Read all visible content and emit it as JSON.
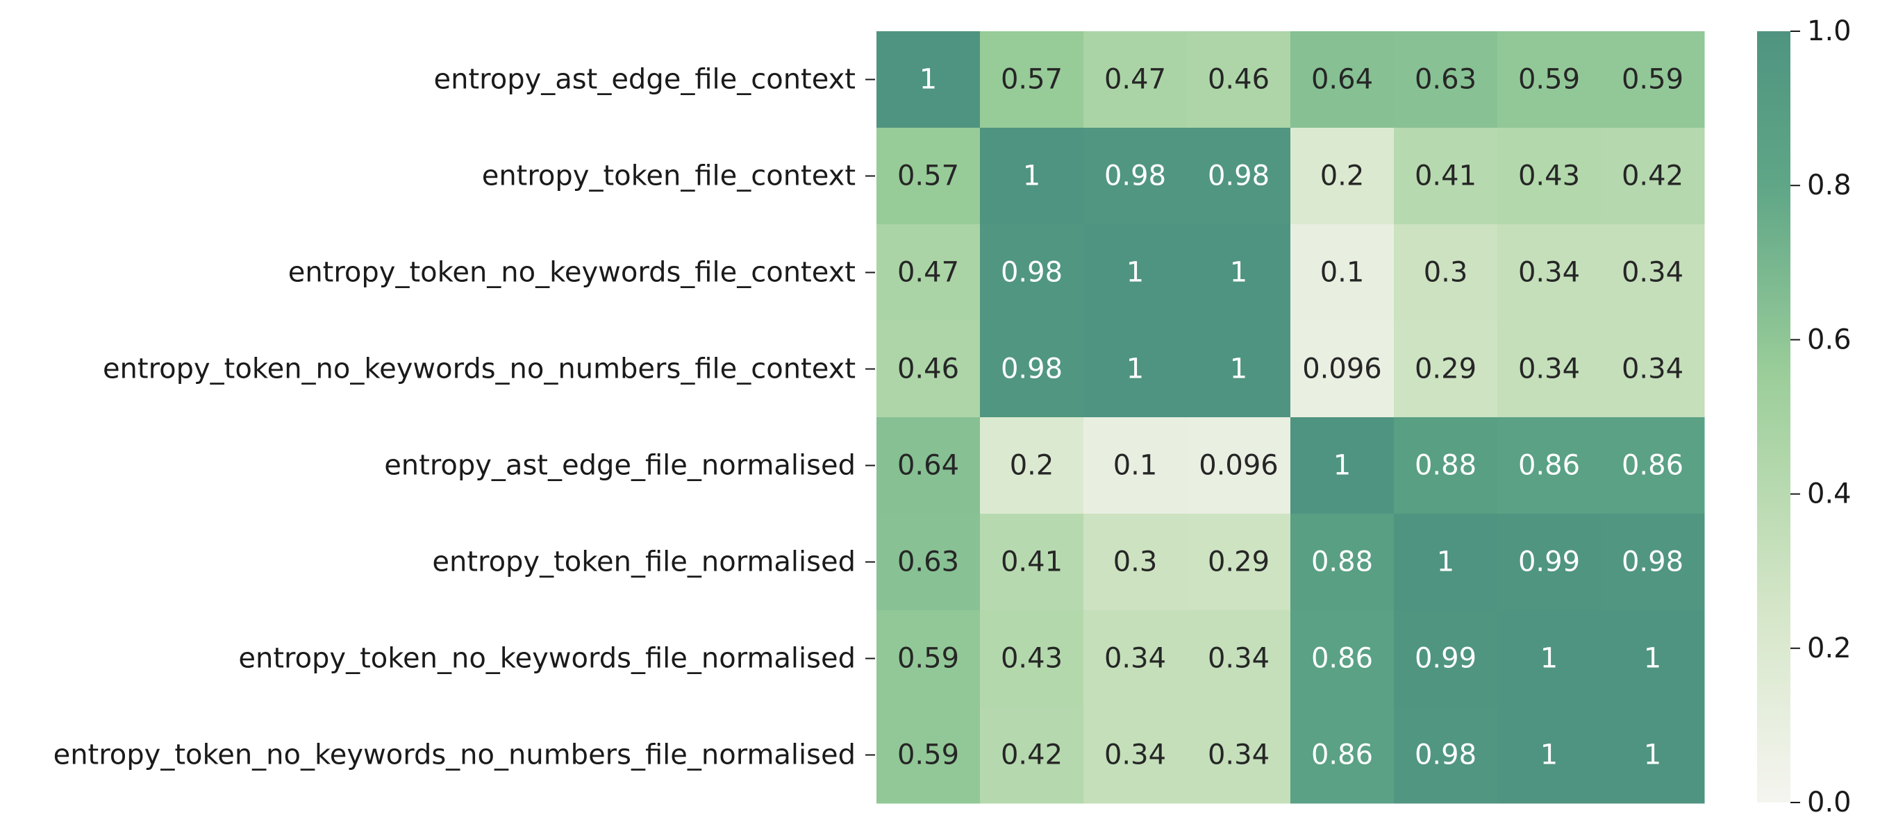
{
  "chart_data": {
    "type": "heatmap",
    "rows": [
      "entropy_ast_edge_file_context",
      "entropy_token_file_context",
      "entropy_token_no_keywords_file_context",
      "entropy_token_no_keywords_no_numbers_file_context",
      "entropy_ast_edge_file_normalised",
      "entropy_token_file_normalised",
      "entropy_token_no_keywords_file_normalised",
      "entropy_token_no_keywords_no_numbers_file_normalised"
    ],
    "values": [
      [
        1,
        0.57,
        0.47,
        0.46,
        0.64,
        0.63,
        0.59,
        0.59
      ],
      [
        0.57,
        1,
        0.98,
        0.98,
        0.2,
        0.41,
        0.43,
        0.42
      ],
      [
        0.47,
        0.98,
        1,
        1,
        0.1,
        0.3,
        0.34,
        0.34
      ],
      [
        0.46,
        0.98,
        1,
        1,
        0.096,
        0.29,
        0.34,
        0.34
      ],
      [
        0.64,
        0.2,
        0.1,
        0.096,
        1,
        0.88,
        0.86,
        0.86
      ],
      [
        0.63,
        0.41,
        0.3,
        0.29,
        0.88,
        1,
        0.99,
        0.98
      ],
      [
        0.59,
        0.43,
        0.34,
        0.34,
        0.86,
        0.99,
        1,
        1
      ],
      [
        0.59,
        0.42,
        0.34,
        0.34,
        0.86,
        0.98,
        1,
        1
      ]
    ],
    "colorbar": {
      "range": [
        0.0,
        1.0
      ],
      "ticks": [
        "0.0",
        "0.2",
        "0.4",
        "0.6",
        "0.8",
        "1.0"
      ]
    },
    "colors": {
      "low": "#f5f5f0",
      "mid": "#9cce9a",
      "high": "#4f9480",
      "text_dark": "#262626",
      "text_light": "#ffffff"
    }
  }
}
